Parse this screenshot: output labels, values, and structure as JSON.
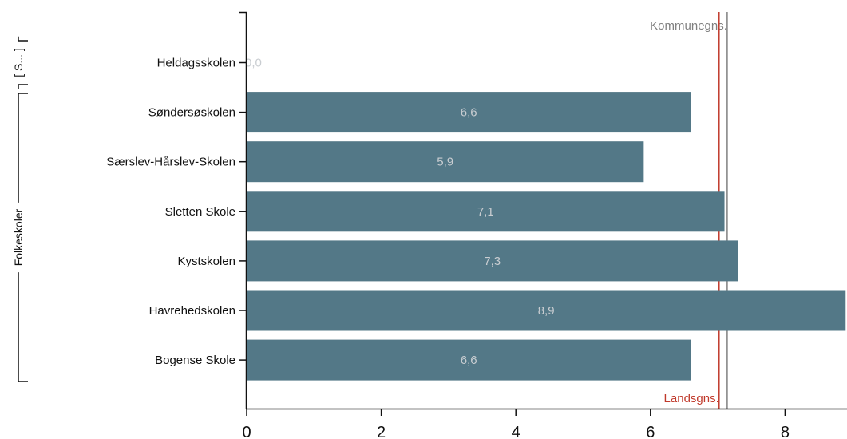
{
  "chart_data": {
    "type": "bar",
    "orientation": "horizontal",
    "categories": [
      "Heldagsskolen",
      "Søndersøskolen",
      "Særslev-Hårslev-Skolen",
      "Sletten Skole",
      "Kystskolen",
      "Havrehedskolen",
      "Bogense Skole"
    ],
    "values": [
      0.0,
      6.6,
      5.9,
      7.1,
      7.3,
      8.9,
      6.6
    ],
    "value_labels": [
      "0,0",
      "6,6",
      "5,9",
      "7,1",
      "7,3",
      "8,9",
      "6,6"
    ],
    "groups": [
      {
        "label": "[ S... ]",
        "categories": [
          "Heldagsskolen"
        ]
      },
      {
        "label": "Folkeskoler",
        "categories": [
          "Søndersøskolen",
          "Særslev-Hårslev-Skolen",
          "Sletten Skole",
          "Kystskolen",
          "Havrehedskolen",
          "Bogense Skole"
        ]
      }
    ],
    "xlim": [
      0,
      8.9
    ],
    "xticks": [
      0,
      2,
      4,
      6,
      8
    ],
    "reference_lines": [
      {
        "name": "Kommunegns.",
        "value": 7.14,
        "color": "#808080"
      },
      {
        "name": "Landsgns.",
        "value": 7.02,
        "color": "#c0392b"
      }
    ],
    "bar_color": "#537887",
    "grid": false,
    "legend": "none"
  }
}
